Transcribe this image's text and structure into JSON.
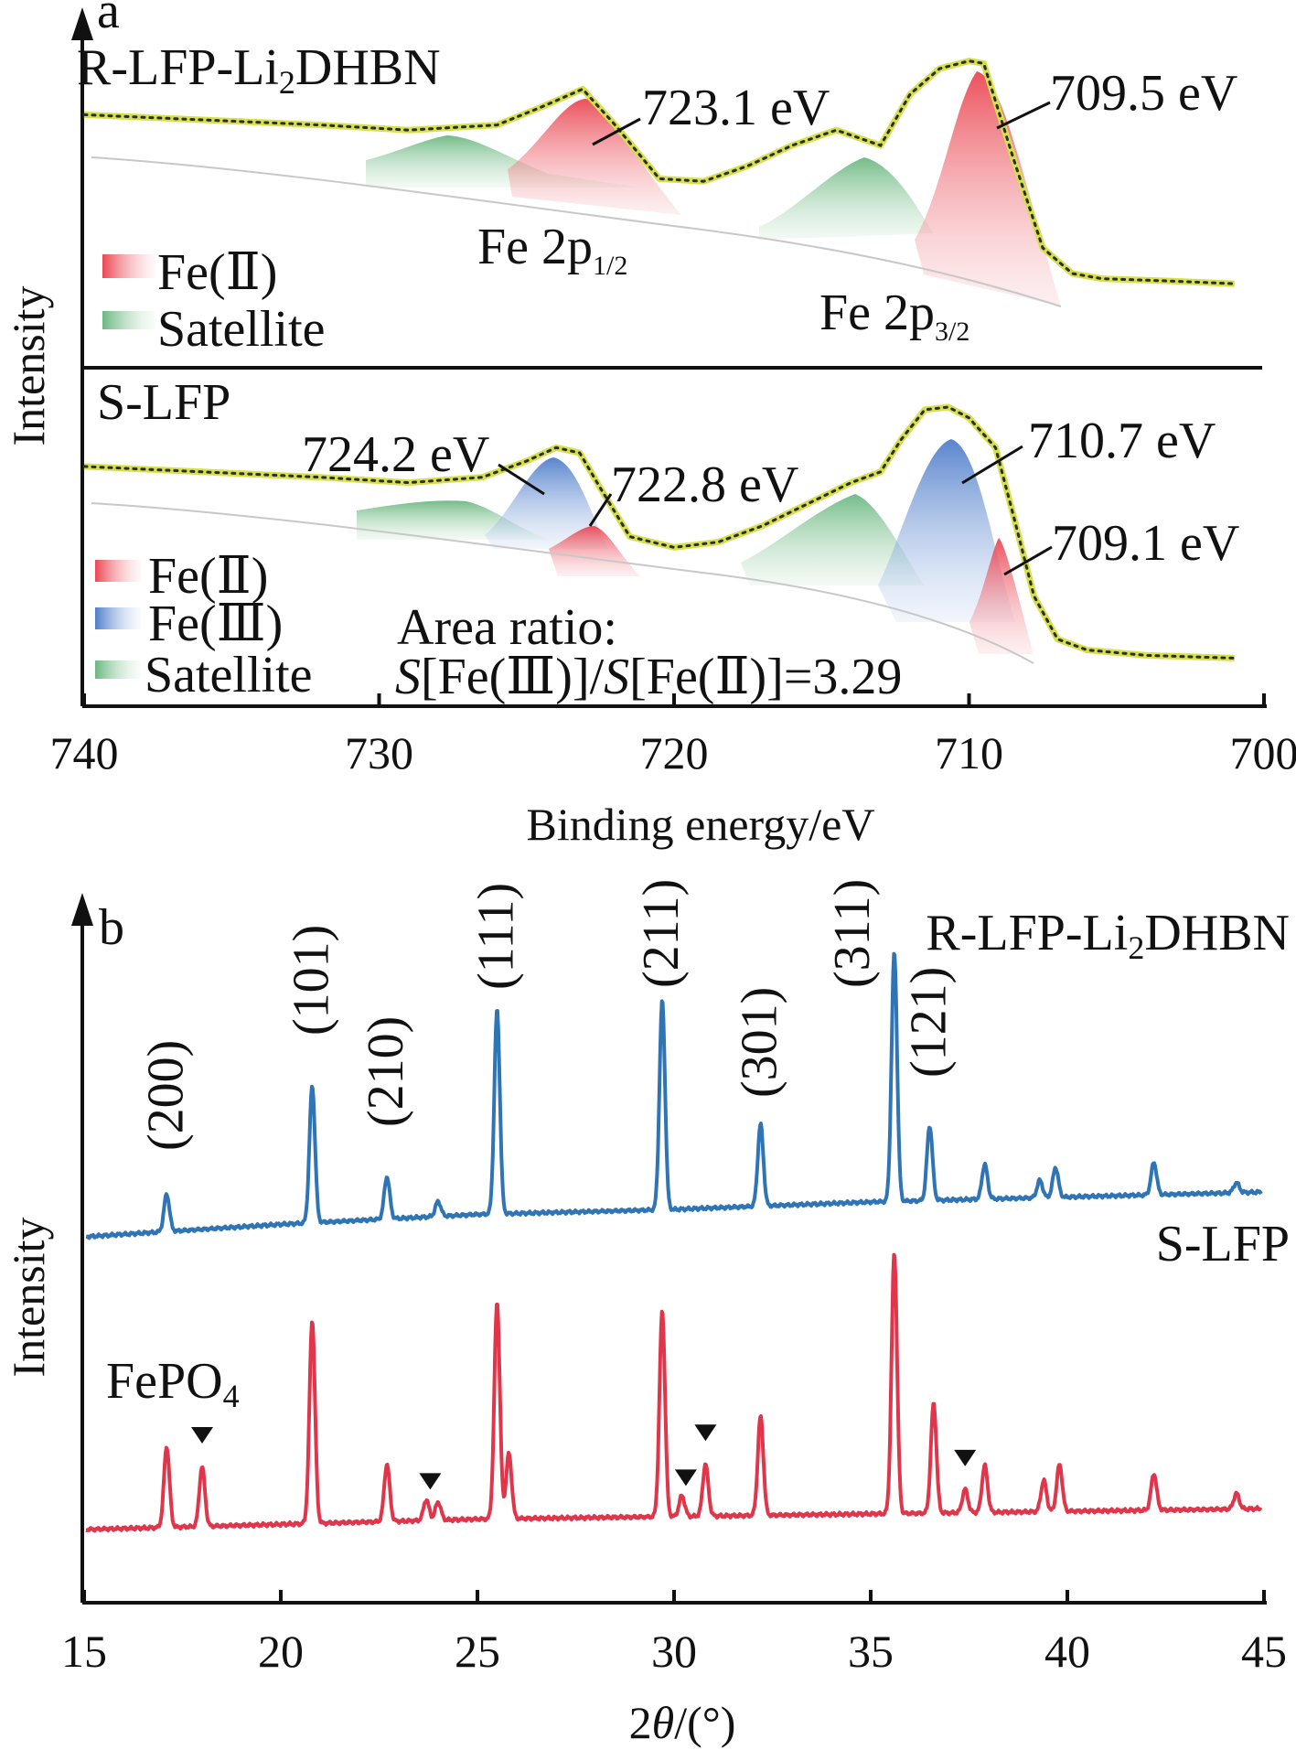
{
  "chart_data": [
    {
      "panel": "a",
      "type": "line",
      "xlabel": "Binding energy/eV",
      "ylabel": "Intensity",
      "xlim": [
        740,
        700
      ],
      "xticks": [
        740,
        730,
        720,
        710,
        700
      ],
      "grid": false,
      "series": [
        {
          "name": "R-LFP-Li2DHBN",
          "label_parts": [
            "R-LFP-Li",
            "2",
            "DHBN"
          ],
          "x": [
            740,
            736,
            732,
            729,
            726,
            724.5,
            723.1,
            722,
            720.5,
            719,
            717.5,
            716,
            714.5,
            713,
            712,
            711,
            710,
            709.5,
            708.5,
            707.5,
            706.5,
            705.5,
            703,
            701
          ],
          "y": [
            0.82,
            0.8,
            0.78,
            0.76,
            0.78,
            0.85,
            0.92,
            0.78,
            0.57,
            0.56,
            0.62,
            0.7,
            0.76,
            0.7,
            0.9,
            1.0,
            1.03,
            1.02,
            0.65,
            0.3,
            0.2,
            0.18,
            0.17,
            0.16
          ],
          "legend": [
            "Fe(Ⅱ)",
            "Satellite"
          ],
          "annotations": [
            {
              "text": "723.1 eV",
              "x": 723.1
            },
            {
              "text": "709.5 eV",
              "x": 709.5
            }
          ],
          "region_labels": [
            {
              "main": "Fe 2p",
              "sub": "1/2"
            },
            {
              "main": "Fe 2p",
              "sub": "3/2"
            }
          ]
        },
        {
          "name": "S-LFP",
          "x": [
            740,
            736,
            732,
            729,
            726.5,
            725,
            724,
            723.2,
            722.5,
            721.5,
            720,
            718.5,
            717,
            715.5,
            714,
            713,
            712.3,
            711.5,
            710.7,
            710,
            709.1,
            708.5,
            707.8,
            707,
            706,
            704,
            701
          ],
          "y": [
            0.78,
            0.76,
            0.74,
            0.72,
            0.74,
            0.8,
            0.85,
            0.83,
            0.7,
            0.52,
            0.48,
            0.5,
            0.56,
            0.64,
            0.72,
            0.76,
            0.88,
            0.99,
            1.0,
            0.96,
            0.85,
            0.6,
            0.3,
            0.14,
            0.1,
            0.08,
            0.07
          ],
          "legend": [
            "Fe(Ⅱ)",
            "Fe(Ⅲ)",
            "Satellite"
          ],
          "annotations": [
            {
              "text": "724.2 eV",
              "x": 724.2
            },
            {
              "text": "722.8 eV",
              "x": 722.8
            },
            {
              "text": "710.7 eV",
              "x": 710.7
            },
            {
              "text": "709.1 eV",
              "x": 709.1
            }
          ],
          "area_ratio": {
            "line1": "Area ratio:",
            "symbol": "S",
            "num": "[Fe(Ⅲ)]/",
            "den": "[Fe(Ⅱ)]=3.29",
            "value": 3.29
          }
        }
      ]
    },
    {
      "panel": "b",
      "type": "line",
      "xlabel_parts": [
        "2",
        "θ",
        "/(°)"
      ],
      "ylabel": "Intensity",
      "xlim": [
        15,
        45
      ],
      "xticks": [
        15,
        20,
        25,
        30,
        35,
        40,
        45
      ],
      "grid": false,
      "series": [
        {
          "name": "R-LFP-Li2DHBN",
          "label_parts": [
            "R-LFP-Li",
            "2",
            "DHBN"
          ],
          "color": "#2f74b5",
          "baseline": [
            [
              15,
              0.0
            ],
            [
              20,
              0.05
            ],
            [
              25,
              0.09
            ],
            [
              30,
              0.11
            ],
            [
              35,
              0.14
            ],
            [
              40,
              0.16
            ],
            [
              45,
              0.18
            ]
          ],
          "peaks": [
            {
              "x": 17.1,
              "h": 0.15
            },
            {
              "x": 20.8,
              "h": 0.55
            },
            {
              "x": 22.7,
              "h": 0.17
            },
            {
              "x": 24.0,
              "h": 0.06
            },
            {
              "x": 25.5,
              "h": 0.82
            },
            {
              "x": 29.7,
              "h": 0.84
            },
            {
              "x": 32.2,
              "h": 0.33
            },
            {
              "x": 35.6,
              "h": 1.0
            },
            {
              "x": 36.5,
              "h": 0.3
            },
            {
              "x": 37.9,
              "h": 0.14
            },
            {
              "x": 39.3,
              "h": 0.07
            },
            {
              "x": 39.7,
              "h": 0.12
            },
            {
              "x": 42.2,
              "h": 0.13
            },
            {
              "x": 44.3,
              "h": 0.04
            }
          ],
          "hkl": [
            {
              "label": "(200)",
              "x": 17.1
            },
            {
              "label": "(101)",
              "x": 20.8
            },
            {
              "label": "(210)",
              "x": 22.7
            },
            {
              "label": "(111)",
              "x": 25.5
            },
            {
              "label": "(211)",
              "x": 29.7
            },
            {
              "label": "(301)",
              "x": 32.2
            },
            {
              "label": "(311)",
              "x": 35.6
            },
            {
              "label": "(121)",
              "x": 36.5
            }
          ]
        },
        {
          "name": "S-LFP",
          "color": "#e0364b",
          "baseline": [
            [
              15,
              0.0
            ],
            [
              20,
              0.02
            ],
            [
              25,
              0.04
            ],
            [
              30,
              0.05
            ],
            [
              35,
              0.06
            ],
            [
              40,
              0.07
            ],
            [
              45,
              0.08
            ]
          ],
          "peaks": [
            {
              "x": 17.1,
              "h": 0.31
            },
            {
              "x": 18.0,
              "h": 0.23
            },
            {
              "x": 20.8,
              "h": 0.78
            },
            {
              "x": 22.7,
              "h": 0.22
            },
            {
              "x": 23.7,
              "h": 0.08
            },
            {
              "x": 24.0,
              "h": 0.07
            },
            {
              "x": 25.5,
              "h": 0.83
            },
            {
              "x": 25.8,
              "h": 0.25
            },
            {
              "x": 29.7,
              "h": 0.79
            },
            {
              "x": 30.2,
              "h": 0.08
            },
            {
              "x": 30.8,
              "h": 0.2
            },
            {
              "x": 32.2,
              "h": 0.38
            },
            {
              "x": 35.6,
              "h": 1.0
            },
            {
              "x": 36.6,
              "h": 0.42
            },
            {
              "x": 37.4,
              "h": 0.09
            },
            {
              "x": 37.9,
              "h": 0.18
            },
            {
              "x": 39.4,
              "h": 0.12
            },
            {
              "x": 39.8,
              "h": 0.18
            },
            {
              "x": 42.2,
              "h": 0.14
            },
            {
              "x": 44.3,
              "h": 0.06
            }
          ],
          "impurity_markers": [
            18.0,
            23.8,
            30.3,
            30.8,
            37.4
          ],
          "impurity_label_parts": [
            "FePO",
            "4"
          ]
        }
      ]
    }
  ]
}
